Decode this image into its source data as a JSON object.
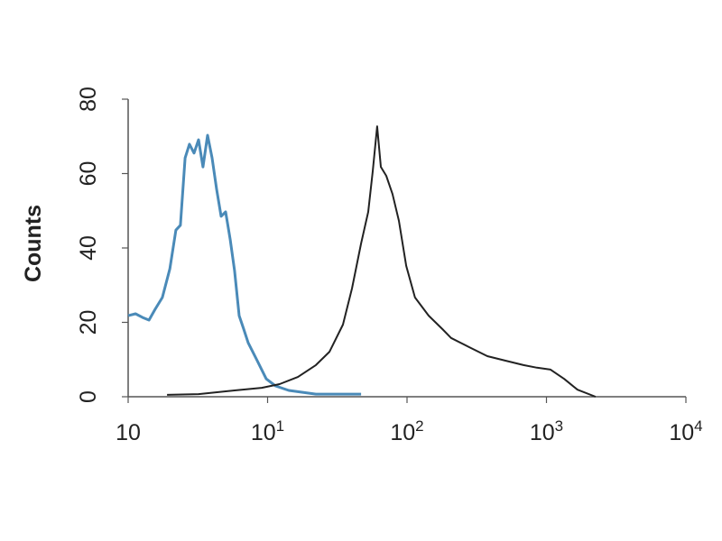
{
  "chart_data": {
    "type": "line",
    "title": "",
    "xlabel": "",
    "ylabel": "Counts",
    "x_scale": "log",
    "xlim": [
      1,
      10000
    ],
    "ylim": [
      0,
      80
    ],
    "grid": false,
    "x_ticks": [
      {
        "base": "10",
        "exp": ""
      },
      {
        "base": "10",
        "exp": "1"
      },
      {
        "base": "10",
        "exp": "2"
      },
      {
        "base": "10",
        "exp": "3"
      },
      {
        "base": "10",
        "exp": "4"
      }
    ],
    "y_ticks": [
      "0",
      "20",
      "40",
      "60",
      "80"
    ],
    "series": [
      {
        "color": "#4a8ab8",
        "x": [
          1,
          1.13,
          1.27,
          1.41,
          1.56,
          1.76,
          1.99,
          2.2,
          2.37,
          2.56,
          2.75,
          2.97,
          3.2,
          3.44,
          3.71,
          4.0,
          4.31,
          4.64,
          5.0,
          5.39,
          5.8,
          6.25,
          6.74,
          7.26,
          8.43,
          9.78,
          11.4,
          14.2,
          22.2,
          46.8
        ],
        "y": [
          21.8,
          22.3,
          21.3,
          20.6,
          23.5,
          26.7,
          34.4,
          44.8,
          46.1,
          64.2,
          67.9,
          65.5,
          69.1,
          61.8,
          70.3,
          64.2,
          55.8,
          48.5,
          49.7,
          42.4,
          33.9,
          21.8,
          18.2,
          14.5,
          9.7,
          4.8,
          2.9,
          1.7,
          0.7,
          0.7
        ]
      },
      {
        "color": "#222222",
        "x": [
          1.9,
          3.2,
          5.8,
          9.08,
          12.2,
          16.5,
          22.2,
          27.8,
          34.7,
          40.3,
          46.8,
          52.7,
          56.8,
          61.1,
          64.9,
          71.0,
          78.7,
          87.4,
          98.6,
          114,
          143,
          179,
          207,
          280,
          377,
          508,
          684,
          855,
          1070,
          1340,
          1670,
          2250
        ],
        "y": [
          0.5,
          0.7,
          1.7,
          2.4,
          3.4,
          5.3,
          8.5,
          12.1,
          19.4,
          29.1,
          41.2,
          49.7,
          60.6,
          72.7,
          61.8,
          59.4,
          54.5,
          47.3,
          35.2,
          26.7,
          21.8,
          18.2,
          15.8,
          13.3,
          10.9,
          9.7,
          8.5,
          7.8,
          7.3,
          4.8,
          1.9,
          0
        ]
      }
    ]
  }
}
